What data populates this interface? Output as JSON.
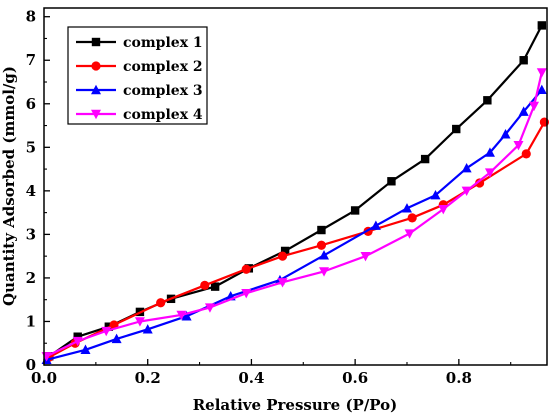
{
  "chart_data": {
    "type": "line",
    "xlabel": "Relative Pressure (P/Po)",
    "ylabel": "Quantity Adsorbed (mmol/g)",
    "xlim": [
      0.0,
      0.97
    ],
    "ylim": [
      0,
      8.2
    ],
    "xticks": [
      "0.0",
      "0.2",
      "0.4",
      "0.6",
      "0.8"
    ],
    "yticks": [
      "0",
      "1",
      "2",
      "3",
      "4",
      "5",
      "6",
      "7",
      "8"
    ],
    "grid": false,
    "legend_position": "top-left",
    "series": [
      {
        "name": "complex 1",
        "color": "#000000",
        "marker": "square",
        "points": [
          [
            0.01,
            0.2
          ],
          [
            0.065,
            0.65
          ],
          [
            0.125,
            0.88
          ],
          [
            0.185,
            1.22
          ],
          [
            0.245,
            1.52
          ],
          [
            0.33,
            1.8
          ],
          [
            0.395,
            2.22
          ],
          [
            0.465,
            2.62
          ],
          [
            0.535,
            3.1
          ],
          [
            0.6,
            3.55
          ],
          [
            0.67,
            4.22
          ],
          [
            0.735,
            4.73
          ],
          [
            0.795,
            5.42
          ],
          [
            0.855,
            6.08
          ],
          [
            0.925,
            7.0
          ],
          [
            0.96,
            7.8
          ]
        ]
      },
      {
        "name": "complex 2",
        "color": "#ff0000",
        "marker": "circle",
        "points": [
          [
            0.01,
            0.18
          ],
          [
            0.06,
            0.5
          ],
          [
            0.135,
            0.92
          ],
          [
            0.225,
            1.43
          ],
          [
            0.31,
            1.83
          ],
          [
            0.39,
            2.2
          ],
          [
            0.46,
            2.5
          ],
          [
            0.535,
            2.75
          ],
          [
            0.625,
            3.07
          ],
          [
            0.71,
            3.38
          ],
          [
            0.77,
            3.68
          ],
          [
            0.84,
            4.18
          ],
          [
            0.93,
            4.85
          ],
          [
            0.965,
            5.58
          ]
        ]
      },
      {
        "name": "complex 3",
        "color": "#0000ff",
        "marker": "triangle-up",
        "points": [
          [
            0.005,
            0.12
          ],
          [
            0.08,
            0.35
          ],
          [
            0.14,
            0.6
          ],
          [
            0.2,
            0.82
          ],
          [
            0.275,
            1.12
          ],
          [
            0.36,
            1.58
          ],
          [
            0.455,
            1.95
          ],
          [
            0.54,
            2.52
          ],
          [
            0.64,
            3.2
          ],
          [
            0.7,
            3.6
          ],
          [
            0.755,
            3.9
          ],
          [
            0.815,
            4.52
          ],
          [
            0.86,
            4.88
          ],
          [
            0.89,
            5.3
          ],
          [
            0.925,
            5.82
          ],
          [
            0.96,
            6.32
          ]
        ]
      },
      {
        "name": "complex 4",
        "color": "#ff00ff",
        "marker": "triangle-down",
        "points": [
          [
            0.005,
            0.2
          ],
          [
            0.065,
            0.55
          ],
          [
            0.12,
            0.78
          ],
          [
            0.185,
            1.0
          ],
          [
            0.265,
            1.15
          ],
          [
            0.32,
            1.32
          ],
          [
            0.39,
            1.65
          ],
          [
            0.46,
            1.9
          ],
          [
            0.54,
            2.15
          ],
          [
            0.62,
            2.5
          ],
          [
            0.705,
            3.02
          ],
          [
            0.77,
            3.58
          ],
          [
            0.815,
            4.0
          ],
          [
            0.86,
            4.42
          ],
          [
            0.915,
            5.05
          ],
          [
            0.945,
            5.95
          ],
          [
            0.96,
            6.72
          ]
        ]
      }
    ]
  }
}
